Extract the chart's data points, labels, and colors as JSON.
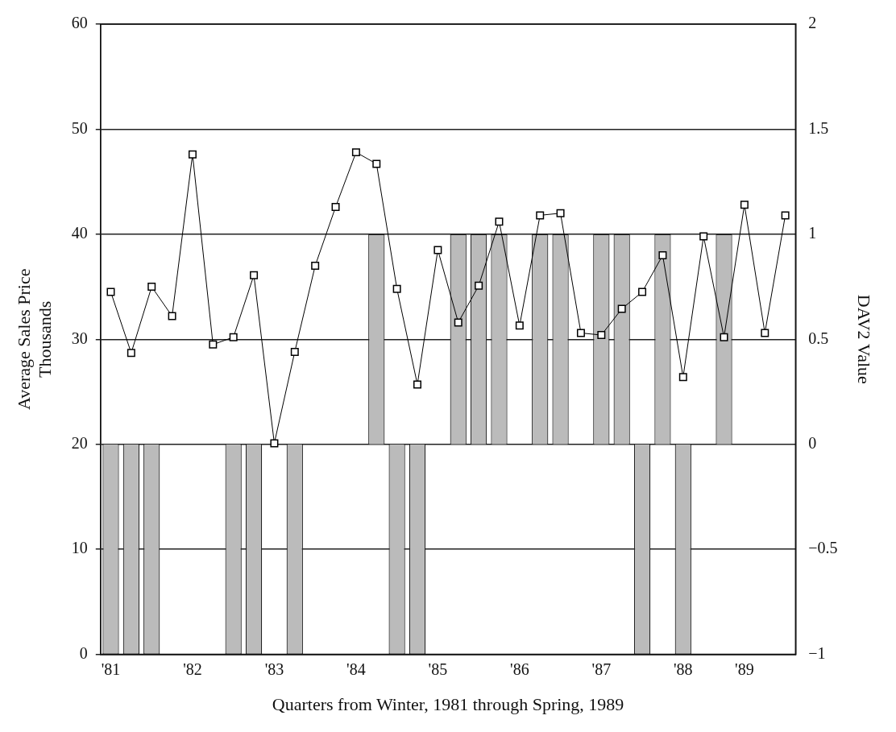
{
  "chart_data": {
    "type": "line",
    "xlabel": "Quarters from Winter, 1981 through Spring, 1989",
    "ylabel": "Average Sales Price\nThousands",
    "y2label": "DAV2 Value",
    "categories": [
      "'81",
      null,
      null,
      null,
      "'82",
      null,
      null,
      null,
      "'83",
      null,
      null,
      null,
      "'84",
      null,
      null,
      null,
      "'85",
      null,
      null,
      null,
      "'86",
      null,
      null,
      null,
      "'87",
      null,
      null,
      null,
      "'88",
      null,
      null,
      "'89",
      null,
      null
    ],
    "series": [
      {
        "type": "bar",
        "axis": "y2",
        "color": "#bbbbbb",
        "values": [
          -1,
          -1,
          -1,
          0,
          0,
          0,
          -1,
          -1,
          0,
          -1,
          0,
          0,
          0,
          1,
          -1,
          -1,
          0,
          1,
          1,
          1,
          0,
          1,
          1,
          0,
          1,
          1,
          -1,
          1,
          -1,
          0,
          1,
          0,
          0,
          0
        ]
      },
      {
        "axis": "y",
        "color": "#000000",
        "values": [
          34.5,
          28.7,
          35,
          32.2,
          47.6,
          29.5,
          30.2,
          36.1,
          20.1,
          28.8,
          37,
          42.6,
          47.8,
          46.7,
          34.8,
          25.7,
          38.5,
          31.6,
          35.1,
          41.2,
          31.3,
          41.8,
          42,
          30.6,
          30.4,
          32.9,
          34.5,
          38,
          26.4,
          39.8,
          30.2,
          42.8,
          30.6,
          41.8
        ]
      }
    ],
    "ylim": [
      0,
      60
    ],
    "yticks": [
      0,
      10,
      20,
      30,
      40,
      50,
      60
    ],
    "y2lim": [
      -1,
      2
    ],
    "y2ticks": [
      {
        "value": -1,
        "label": "−1"
      },
      {
        "value": -0.5,
        "label": "−0.5"
      },
      0,
      0.5,
      1,
      1.5,
      2
    ],
    "grid": "y",
    "legend": false,
    "marker": "square",
    "line_style": "solid"
  }
}
